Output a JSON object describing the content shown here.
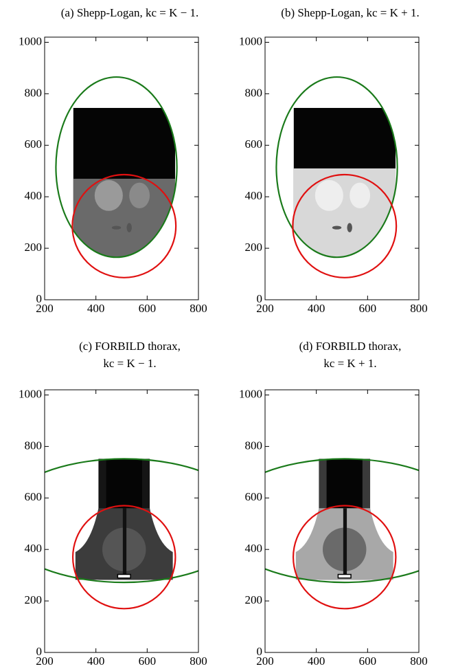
{
  "chart_data": [
    {
      "type": "image",
      "title": [
        "(a) Shepp-Logan, kc = K − 1."
      ],
      "xlim": [
        200,
        800
      ],
      "ylim": [
        0,
        1020
      ],
      "xticks": [
        200,
        400,
        600,
        800
      ],
      "yticks": [
        0,
        200,
        400,
        600,
        800,
        1000
      ],
      "ellipses": [
        {
          "color": "#1a7a1a",
          "cx": 480,
          "cy": 515,
          "rx": 236,
          "ry": 350
        },
        {
          "color": "#e01010",
          "cx": 510,
          "cy": 286,
          "rx": 202,
          "ry": 200
        }
      ]
    },
    {
      "type": "image",
      "title": [
        "(b) Shepp-Logan, kc = K + 1."
      ],
      "xlim": [
        200,
        800
      ],
      "ylim": [
        0,
        1020
      ],
      "xticks": [
        200,
        400,
        600,
        800
      ],
      "yticks": [
        0,
        200,
        400,
        600,
        800,
        1000
      ],
      "ellipses": [
        {
          "color": "#1a7a1a",
          "cx": 480,
          "cy": 515,
          "rx": 236,
          "ry": 350
        },
        {
          "color": "#e01010",
          "cx": 510,
          "cy": 286,
          "rx": 202,
          "ry": 200
        }
      ]
    },
    {
      "type": "image",
      "title": [
        "(c) FORBILD thorax,",
        "kc = K − 1."
      ],
      "xlim": [
        200,
        800
      ],
      "ylim": [
        0,
        1020
      ],
      "xticks": [
        200,
        400,
        600,
        800
      ],
      "yticks": [
        0,
        200,
        400,
        600,
        800,
        1000
      ],
      "ellipses": [
        {
          "color": "#1a7a1a",
          "cx": 510,
          "cy": 512,
          "rx": 498,
          "ry": 240
        },
        {
          "color": "#e01010",
          "cx": 510,
          "cy": 370,
          "rx": 200,
          "ry": 200
        }
      ]
    },
    {
      "type": "image",
      "title": [
        "(d) FORBILD thorax,",
        "kc = K + 1."
      ],
      "xlim": [
        200,
        800
      ],
      "ylim": [
        0,
        1020
      ],
      "xticks": [
        200,
        400,
        600,
        800
      ],
      "yticks": [
        0,
        200,
        400,
        600,
        800,
        1000
      ],
      "ellipses": [
        {
          "color": "#1a7a1a",
          "cx": 510,
          "cy": 512,
          "rx": 498,
          "ry": 240
        },
        {
          "color": "#e01010",
          "cx": 510,
          "cy": 370,
          "rx": 200,
          "ry": 200
        }
      ]
    }
  ]
}
